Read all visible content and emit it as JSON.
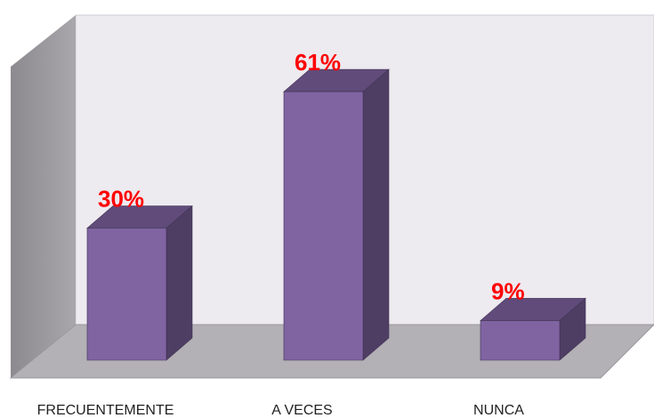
{
  "chart_data": {
    "type": "bar3d",
    "categories": [
      "FRECUENTEMENTE",
      "A VECES",
      "NUNCA"
    ],
    "values": [
      30,
      61,
      9
    ],
    "value_labels": [
      "30%",
      "61%",
      "9%"
    ],
    "color": "#8064a2"
  }
}
